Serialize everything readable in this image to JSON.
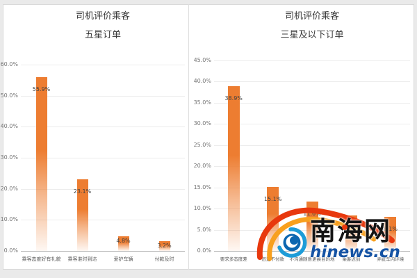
{
  "page": {
    "background": "#eaeaea",
    "sheet_background": "#ffffff",
    "panel_border": "#d9d9d9",
    "gridline_color": "#ececec",
    "axis_color": "#b3b3b3",
    "accent_orange": "#ED7D31"
  },
  "chart_data": [
    {
      "type": "bar",
      "title": "司机评价乘客",
      "subtitle": "五星订单",
      "categories": [
        "乘客态度好有礼貌",
        "乘客准时到达",
        "爱护车辆",
        "付款及时"
      ],
      "values": [
        55.9,
        23.1,
        4.8,
        3.2
      ],
      "labels": [
        "55.9%",
        "23.1%",
        "4.8%",
        "3.2%"
      ],
      "xlabel": "",
      "ylabel": "",
      "ylim": [
        0,
        60
      ],
      "yticks": [
        "60.0%",
        "50.0%",
        "40.0%",
        "30.0%",
        "20.0%",
        "10.0%",
        "0.0%"
      ],
      "grid": true,
      "legend": "none",
      "bar_color": "#ED7D31"
    },
    {
      "type": "bar",
      "title": "司机评价乘客",
      "subtitle": "三星及以下订单",
      "categories": [
        "要求多态度差",
        "迟迟不付款",
        "不沟通随意更换目的地",
        "乘客迟到",
        "弄脏车内环境"
      ],
      "values": [
        38.9,
        15.1,
        11.6,
        8.4,
        8.1
      ],
      "labels": [
        "38.9%",
        "15.1%",
        "11.6%",
        "8.4%",
        "8.1%"
      ],
      "xlabel": "",
      "ylabel": "",
      "ylim": [
        0,
        45
      ],
      "yticks": [
        "45.0%",
        "40.0%",
        "35.0%",
        "30.0%",
        "25.0%",
        "20.0%",
        "15.0%",
        "10.0%",
        "5.0%",
        "0.0%"
      ],
      "grid": true,
      "legend": "none",
      "bar_color": "#ED7D31"
    }
  ],
  "watermark": {
    "site_name": "南海网",
    "site_url": "hinews.cn",
    "logo_icon": "typhoon-swirl-icon",
    "colors": {
      "red_arc": "#E8380D",
      "orange_arc": "#F8A01E",
      "blue_arc": "#1E9CD8",
      "ball_blue": "#0C66B0",
      "url_blue": "#1553A4",
      "name_black": "#141414"
    }
  }
}
